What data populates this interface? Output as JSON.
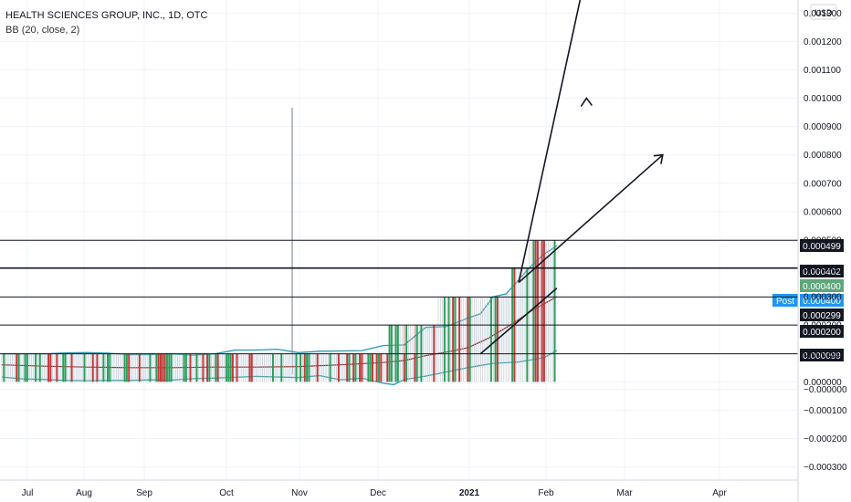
{
  "header": {
    "title": "HEALTH SCIENCES GROUP, INC., 1D, OTC",
    "indicator": "BB (20, close, 2)"
  },
  "price_scale": {
    "currency": "USD",
    "ticks": [
      "0.001300",
      "0.001200",
      "0.001100",
      "0.001000",
      "0.000900",
      "0.000800",
      "0.000700",
      "0.000600",
      "0.000500",
      "0.000400",
      "0.000300",
      "0.000200",
      "0.000100",
      "0.000000",
      "−0.000000",
      "−0.000100",
      "−0.000200",
      "−0.000300"
    ],
    "tick_values": [
      0.0013,
      0.0012,
      0.0011,
      0.001,
      0.0009,
      0.0008,
      0.0007,
      0.0006,
      0.0005,
      0.0004,
      0.0003,
      0.0002,
      0.0001,
      0.0,
      -0.0,
      -0.0001,
      -0.0002,
      -0.0003
    ]
  },
  "time_axis": [
    "Jul",
    "Aug",
    "Sep",
    "Oct",
    "Nov",
    "Dec",
    "2021",
    "Feb",
    "Mar",
    "Apr"
  ],
  "chart_data": {
    "type": "candlestick",
    "title": "HEALTH SCIENCES GROUP, INC., 1D, OTC",
    "indicator": "BB (20, close, 2)",
    "ylim": [
      -0.00034,
      0.00133
    ],
    "horizontal_levels": [
      {
        "value": 0.000499,
        "label": "0.000499",
        "style": "dark"
      },
      {
        "value": 0.000402,
        "label": "0.000402",
        "style": "dark"
      },
      {
        "value": 0.0004,
        "label": "0.000400",
        "style": "green"
      },
      {
        "value": 0.0004,
        "label": "0.000400",
        "prefix": "Post",
        "style": "blue"
      },
      {
        "value": 0.000299,
        "label": "0.000299",
        "style": "dark"
      },
      {
        "value": 0.0002,
        "label": "0.000200",
        "style": "dark"
      },
      {
        "value": 9.9e-05,
        "label": "0.000099",
        "style": "dark"
      }
    ],
    "bollinger": {
      "period": 20,
      "stddev": 2,
      "upper": [
        [
          0,
          9.9e-05
        ],
        [
          10,
          9.9e-05
        ],
        [
          20,
          9.9e-05
        ],
        [
          30,
          0.000102
        ],
        [
          40,
          0.000103
        ],
        [
          50,
          0.000101
        ],
        [
          60,
          9.6e-05
        ],
        [
          70,
          9.6e-05
        ],
        [
          80,
          9.9e-05
        ],
        [
          90,
          9.4e-05
        ],
        [
          100,
          9.8e-05
        ],
        [
          110,
          0.000112
        ],
        [
          120,
          0.000112
        ],
        [
          130,
          0.000115
        ],
        [
          140,
          0.000103
        ],
        [
          150,
          0.000108
        ],
        [
          160,
          0.000109
        ],
        [
          170,
          0.00011
        ],
        [
          180,
          0.000128
        ],
        [
          190,
          0.00013
        ],
        [
          200,
          0.000192
        ],
        [
          210,
          0.000195
        ],
        [
          220,
          0.000225
        ],
        [
          226,
          0.00024
        ],
        [
          232,
          0.0003
        ],
        [
          238,
          0.00031
        ],
        [
          244,
          0.00036
        ],
        [
          250,
          0.00041
        ],
        [
          256,
          0.00045
        ],
        [
          262,
          0.00048
        ]
      ],
      "middle": [
        [
          0,
          6e-05
        ],
        [
          20,
          5.5e-05
        ],
        [
          40,
          5.2e-05
        ],
        [
          60,
          5e-05
        ],
        [
          80,
          5e-05
        ],
        [
          100,
          5.2e-05
        ],
        [
          120,
          5.2e-05
        ],
        [
          140,
          5.4e-05
        ],
        [
          160,
          6e-05
        ],
        [
          180,
          6.8e-05
        ],
        [
          190,
          7.5e-05
        ],
        [
          200,
          9.2e-05
        ],
        [
          210,
          0.000105
        ],
        [
          220,
          0.00012
        ],
        [
          230,
          0.000155
        ],
        [
          240,
          0.0002
        ],
        [
          250,
          0.00025
        ],
        [
          262,
          0.0003
        ]
      ],
      "lower": [
        [
          0,
          1.7e-05
        ],
        [
          10,
          1e-05
        ],
        [
          20,
          8e-06
        ],
        [
          30,
          5e-06
        ],
        [
          40,
          4e-06
        ],
        [
          50,
          5e-06
        ],
        [
          60,
          5e-06
        ],
        [
          70,
          7e-06
        ],
        [
          80,
          6e-06
        ],
        [
          90,
          1.1e-05
        ],
        [
          100,
          1.3e-05
        ],
        [
          110,
          1.6e-05
        ],
        [
          120,
          1.9e-05
        ],
        [
          140,
          1.5e-05
        ],
        [
          150,
          2.2e-05
        ],
        [
          160,
          7e-06
        ],
        [
          170,
          1.3e-05
        ],
        [
          180,
          -5e-06
        ],
        [
          185,
          -1e-05
        ],
        [
          190,
          8e-06
        ],
        [
          200,
          2e-05
        ],
        [
          210,
          3.5e-05
        ],
        [
          220,
          5e-05
        ],
        [
          232,
          6.5e-05
        ],
        [
          244,
          7e-05
        ],
        [
          256,
          8.5e-05
        ],
        [
          262,
          0.00011
        ]
      ]
    },
    "vertical_marker_index": 118,
    "arrows": [
      {
        "from": [
          244,
          0.00035
        ],
        "to": [
          276,
          0.00145
        ]
      },
      {
        "from": [
          244,
          0.00035
        ],
        "to": [
          312,
          0.0008
        ]
      }
    ],
    "arrow_heads": [
      {
        "at": [
          276,
          0.001
        ],
        "direction": "up"
      },
      {
        "at": [
          312,
          0.0008
        ],
        "direction": "up-right"
      }
    ],
    "trend_line": {
      "from": [
        226,
        9.9e-05
      ],
      "to": [
        262,
        0.00033
      ]
    }
  }
}
